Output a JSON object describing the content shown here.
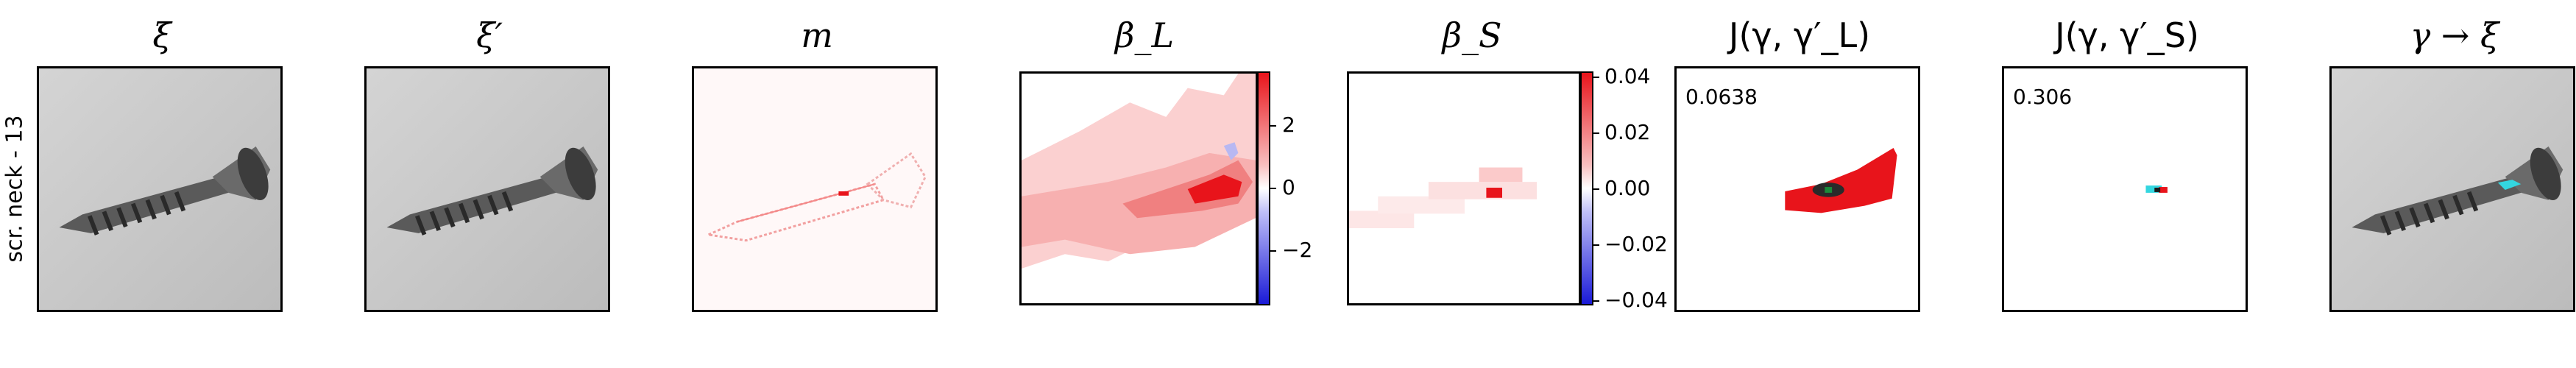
{
  "row_label": "scr. neck - 13",
  "panels": {
    "xi": {
      "title": "ξ"
    },
    "xi_prime": {
      "title": "ξ′"
    },
    "m": {
      "title": "m"
    },
    "beta_l": {
      "title": "β_L",
      "colorbar_ticks": [
        "2",
        "0",
        "−2"
      ]
    },
    "beta_s": {
      "title": "β_S",
      "colorbar_ticks": [
        "0.04",
        "0.02",
        "0.00",
        "−0.02",
        "−0.04"
      ]
    },
    "j_l": {
      "title": "J(γ, γ′_L)",
      "score": "0.0638"
    },
    "j_s": {
      "title": "J(γ, γ′_S)",
      "score": "0.306"
    },
    "gamma_xi": {
      "title": "γ → ξ"
    }
  },
  "colors": {
    "positive": "#e8141b",
    "negative": "#1a1ad6",
    "overlay_cyan": "#33d6e0",
    "photo_bg": "#c8c8c8"
  }
}
